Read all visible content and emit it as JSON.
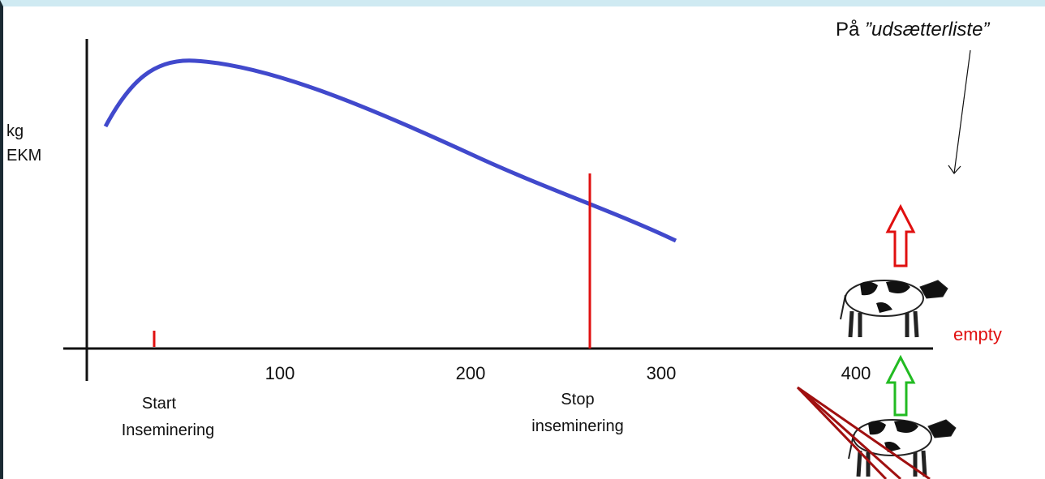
{
  "y_label": {
    "line1": "kg",
    "line2": "EKM"
  },
  "x_ticks": [
    "100",
    "200",
    "300",
    "400"
  ],
  "annotations": {
    "start": {
      "line1": "Start",
      "line2": "Inseminering"
    },
    "stop": {
      "line1": "Stop",
      "line2": "inseminering"
    },
    "cull_list": {
      "prefix": "På ",
      "italic": "”udsætterliste”"
    },
    "empty": "empty"
  }
}
